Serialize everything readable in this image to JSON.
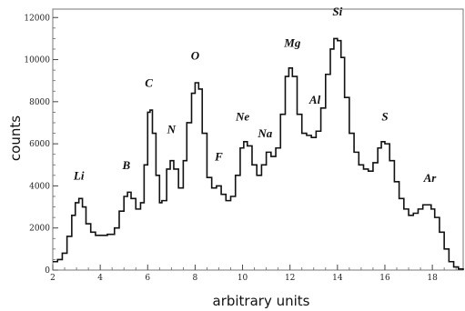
{
  "chart_data": {
    "type": "line",
    "title": "",
    "xlabel": "arbitrary units",
    "ylabel": "counts",
    "xlim": [
      2,
      19.3
    ],
    "ylim": [
      0,
      12400
    ],
    "grid": false,
    "step": true,
    "line_color": "#111111",
    "x_ticks": [
      2,
      4,
      6,
      8,
      10,
      12,
      14,
      16,
      18
    ],
    "y_ticks": [
      0,
      2000,
      4000,
      6000,
      8000,
      10000,
      12000
    ],
    "series": [
      {
        "x": [
          2.0,
          2.2,
          2.4,
          2.6,
          2.8,
          2.95,
          3.1,
          3.25,
          3.4,
          3.6,
          3.8,
          4.0,
          4.3,
          4.6,
          4.8,
          5.0,
          5.15,
          5.3,
          5.5,
          5.7,
          5.85,
          6.0,
          6.1,
          6.2,
          6.35,
          6.5,
          6.6,
          6.8,
          6.95,
          7.1,
          7.3,
          7.5,
          7.65,
          7.85,
          8.0,
          8.15,
          8.3,
          8.5,
          8.7,
          8.9,
          9.1,
          9.3,
          9.5,
          9.7,
          9.9,
          10.05,
          10.2,
          10.4,
          10.6,
          10.8,
          11.0,
          11.2,
          11.4,
          11.6,
          11.8,
          11.95,
          12.1,
          12.3,
          12.5,
          12.7,
          12.9,
          13.1,
          13.3,
          13.5,
          13.7,
          13.85,
          14.0,
          14.15,
          14.3,
          14.5,
          14.7,
          14.9,
          15.1,
          15.3,
          15.5,
          15.7,
          15.85,
          16.0,
          16.2,
          16.4,
          16.6,
          16.8,
          17.0,
          17.2,
          17.4,
          17.6,
          17.8,
          17.95,
          18.1,
          18.3,
          18.5,
          18.7,
          18.9,
          19.1,
          19.3
        ],
        "values": [
          400,
          500,
          800,
          1600,
          2600,
          3200,
          3400,
          3000,
          2200,
          1800,
          1650,
          1650,
          1700,
          2000,
          2800,
          3500,
          3700,
          3400,
          2900,
          3200,
          5000,
          7500,
          7600,
          6500,
          4500,
          3200,
          3300,
          4800,
          5200,
          4800,
          3900,
          5200,
          7000,
          8400,
          8900,
          8600,
          6500,
          4400,
          3900,
          4000,
          3600,
          3300,
          3500,
          4500,
          5800,
          6100,
          5900,
          5000,
          4500,
          5000,
          5600,
          5400,
          5800,
          7400,
          9200,
          9600,
          9200,
          7400,
          6500,
          6400,
          6300,
          6600,
          7700,
          9300,
          10500,
          11000,
          10900,
          10100,
          8200,
          6500,
          5600,
          5000,
          4800,
          4700,
          5100,
          5800,
          6100,
          6000,
          5200,
          4200,
          3400,
          2900,
          2600,
          2700,
          2900,
          3100,
          3100,
          2900,
          2500,
          1800,
          1000,
          400,
          150,
          50,
          0
        ]
      }
    ],
    "annotations": [
      {
        "text": "Li",
        "x": 3.1,
        "y": 4300
      },
      {
        "text": "B",
        "x": 5.1,
        "y": 4800
      },
      {
        "text": "C",
        "x": 6.05,
        "y": 8700
      },
      {
        "text": "N",
        "x": 7.0,
        "y": 6500
      },
      {
        "text": "O",
        "x": 8.0,
        "y": 10000
      },
      {
        "text": "F",
        "x": 9.0,
        "y": 5200
      },
      {
        "text": "Ne",
        "x": 10.0,
        "y": 7100
      },
      {
        "text": "Na",
        "x": 10.95,
        "y": 6300
      },
      {
        "text": "Mg",
        "x": 12.1,
        "y": 10600
      },
      {
        "text": "Al",
        "x": 13.05,
        "y": 7900
      },
      {
        "text": "Si",
        "x": 14.0,
        "y": 12100
      },
      {
        "text": "S",
        "x": 16.0,
        "y": 7100
      },
      {
        "text": "Ar",
        "x": 17.9,
        "y": 4200
      }
    ]
  }
}
